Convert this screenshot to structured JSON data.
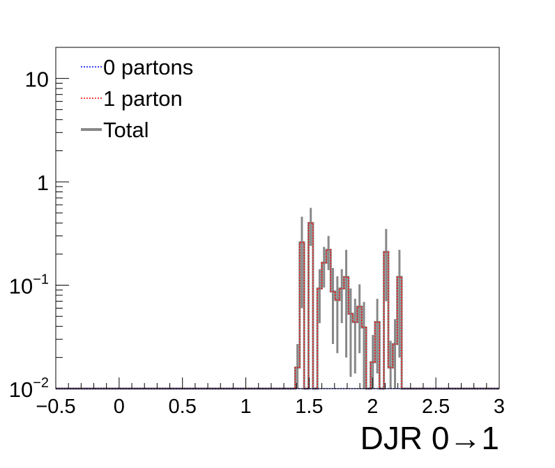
{
  "chart_data": {
    "type": "histogram",
    "title": "",
    "xlabel": "DJR 0→1",
    "ylabel": "",
    "xlim": [
      -0.5,
      3
    ],
    "ylim": [
      0.01,
      20
    ],
    "yscale": "log",
    "grid": false,
    "legend_position": "top-left",
    "x_ticks": [
      "−0.5",
      "0",
      "0.5",
      "1",
      "1.5",
      "2",
      "2.5",
      "3"
    ],
    "x_tick_values": [
      -0.5,
      0,
      0.5,
      1,
      1.5,
      2,
      2.5,
      3
    ],
    "y_ticks": [
      {
        "value": 0.01,
        "base": "10",
        "exp": "−2"
      },
      {
        "value": 0.1,
        "base": "10",
        "exp": "−1"
      },
      {
        "value": 1,
        "base": "1",
        "exp": ""
      },
      {
        "value": 10,
        "base": "10",
        "exp": ""
      }
    ],
    "bin_width": 0.035,
    "bins_start": -0.5,
    "series": [
      {
        "name": "0 partons",
        "color": "#0000ff",
        "style": "dotted",
        "values": [
          0,
          0,
          0,
          0,
          0,
          0,
          0,
          0,
          0,
          0,
          0,
          0,
          0,
          0,
          0,
          0,
          0,
          0,
          0,
          0,
          0,
          0,
          0,
          0,
          0,
          0,
          0,
          0,
          0,
          0,
          0,
          0,
          0,
          0,
          0,
          0,
          0,
          0,
          0,
          0,
          0,
          0,
          0,
          0,
          0,
          0,
          0,
          0,
          0,
          0,
          0,
          0,
          0,
          0,
          0,
          0,
          0,
          0,
          0,
          0,
          0,
          0,
          0,
          0,
          0,
          0,
          0,
          0,
          0,
          0,
          0,
          0,
          0,
          0,
          0,
          0,
          0,
          0,
          0,
          0,
          0,
          0,
          0,
          0,
          0,
          0,
          0,
          0,
          0,
          0,
          0,
          0,
          0,
          0,
          0,
          0,
          0,
          0,
          0,
          0
        ]
      },
      {
        "name": "1 parton",
        "color": "#ff0000",
        "style": "dotted",
        "values": [
          0,
          0,
          0,
          0,
          0,
          0,
          0,
          0,
          0,
          0,
          0,
          0,
          0,
          0,
          0,
          0,
          0,
          0,
          0,
          0,
          0,
          0,
          0,
          0,
          0,
          0,
          0,
          0,
          0,
          0,
          0,
          0,
          0,
          0,
          0,
          0,
          0,
          0,
          0,
          0,
          0,
          0,
          0,
          0,
          0,
          0,
          0,
          0,
          0,
          0,
          0,
          0,
          0,
          0,
          0.016,
          0.26,
          0,
          0.4,
          0,
          0.093,
          0.165,
          0.22,
          0.087,
          0.072,
          0.093,
          0.12,
          0.053,
          0.044,
          0.062,
          0.039,
          0,
          0.018,
          0.044,
          0,
          0.21,
          0.016,
          0.027,
          0.12,
          0,
          0,
          0,
          0,
          0,
          0,
          0,
          0,
          0,
          0,
          0,
          0,
          0,
          0,
          0,
          0,
          0,
          0,
          0,
          0,
          0,
          0
        ]
      },
      {
        "name": "Total",
        "color": "#888888",
        "style": "solid",
        "values": [
          0,
          0,
          0,
          0,
          0,
          0,
          0,
          0,
          0,
          0,
          0,
          0,
          0,
          0,
          0,
          0,
          0,
          0,
          0,
          0,
          0,
          0,
          0,
          0,
          0,
          0,
          0,
          0,
          0,
          0,
          0,
          0,
          0,
          0,
          0,
          0,
          0,
          0,
          0,
          0,
          0,
          0,
          0,
          0,
          0,
          0,
          0,
          0,
          0,
          0,
          0,
          0,
          0,
          0,
          0.016,
          0.26,
          0,
          0.4,
          0,
          0.093,
          0.165,
          0.22,
          0.087,
          0.072,
          0.093,
          0.12,
          0.053,
          0.044,
          0.062,
          0.039,
          0,
          0.018,
          0.044,
          0,
          0.21,
          0.016,
          0.027,
          0.12,
          0,
          0,
          0,
          0,
          0,
          0,
          0,
          0,
          0,
          0,
          0,
          0,
          0,
          0,
          0,
          0,
          0,
          0,
          0,
          0,
          0,
          0
        ],
        "errors": [
          0,
          0,
          0,
          0,
          0,
          0,
          0,
          0,
          0,
          0,
          0,
          0,
          0,
          0,
          0,
          0,
          0,
          0,
          0,
          0,
          0,
          0,
          0,
          0,
          0,
          0,
          0,
          0,
          0,
          0,
          0,
          0,
          0,
          0,
          0,
          0,
          0,
          0,
          0,
          0,
          0,
          0,
          0,
          0,
          0,
          0,
          0,
          0,
          0,
          0,
          0,
          0,
          0,
          0,
          0.011,
          0.2,
          0,
          0.16,
          0,
          0.05,
          0.07,
          0.08,
          0.06,
          0.05,
          0.05,
          0.1,
          0.04,
          0.03,
          0.04,
          0.03,
          0,
          0.015,
          0.03,
          0,
          0.14,
          0.013,
          0.02,
          0.1,
          0,
          0,
          0,
          0,
          0,
          0,
          0,
          0,
          0,
          0,
          0,
          0,
          0,
          0,
          0,
          0,
          0,
          0,
          0,
          0,
          0,
          0
        ]
      }
    ]
  }
}
